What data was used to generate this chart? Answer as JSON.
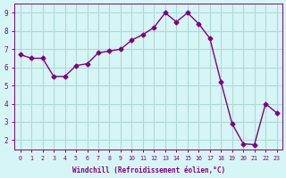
{
  "x": [
    0,
    1,
    2,
    3,
    4,
    5,
    6,
    7,
    8,
    9,
    10,
    11,
    12,
    13,
    14,
    15,
    16,
    17,
    18,
    19,
    20,
    21,
    22,
    23
  ],
  "y": [
    6.7,
    6.5,
    6.5,
    5.5,
    5.5,
    6.1,
    6.2,
    6.8,
    6.9,
    7.0,
    7.5,
    7.8,
    8.2,
    9.0,
    8.5,
    9.0,
    8.4,
    7.6,
    5.2,
    2.9,
    1.8,
    1.75,
    4.0,
    3.5
  ],
  "line_color": "#800080",
  "marker": "D",
  "marker_size": 2.5,
  "bg_color": "#d6f5f5",
  "grid_color": "#b0d8d8",
  "xlabel": "Windchill (Refroidissement éolien,°C)",
  "xlabel_color": "#800080",
  "tick_color": "#800080",
  "ylim": [
    1.5,
    9.5
  ],
  "xlim": [
    -0.5,
    23.5
  ],
  "yticks": [
    2,
    3,
    4,
    5,
    6,
    7,
    8,
    9
  ],
  "xticks": [
    0,
    1,
    2,
    3,
    4,
    5,
    6,
    7,
    8,
    9,
    10,
    11,
    12,
    13,
    14,
    15,
    16,
    17,
    18,
    19,
    20,
    21,
    22,
    23
  ]
}
